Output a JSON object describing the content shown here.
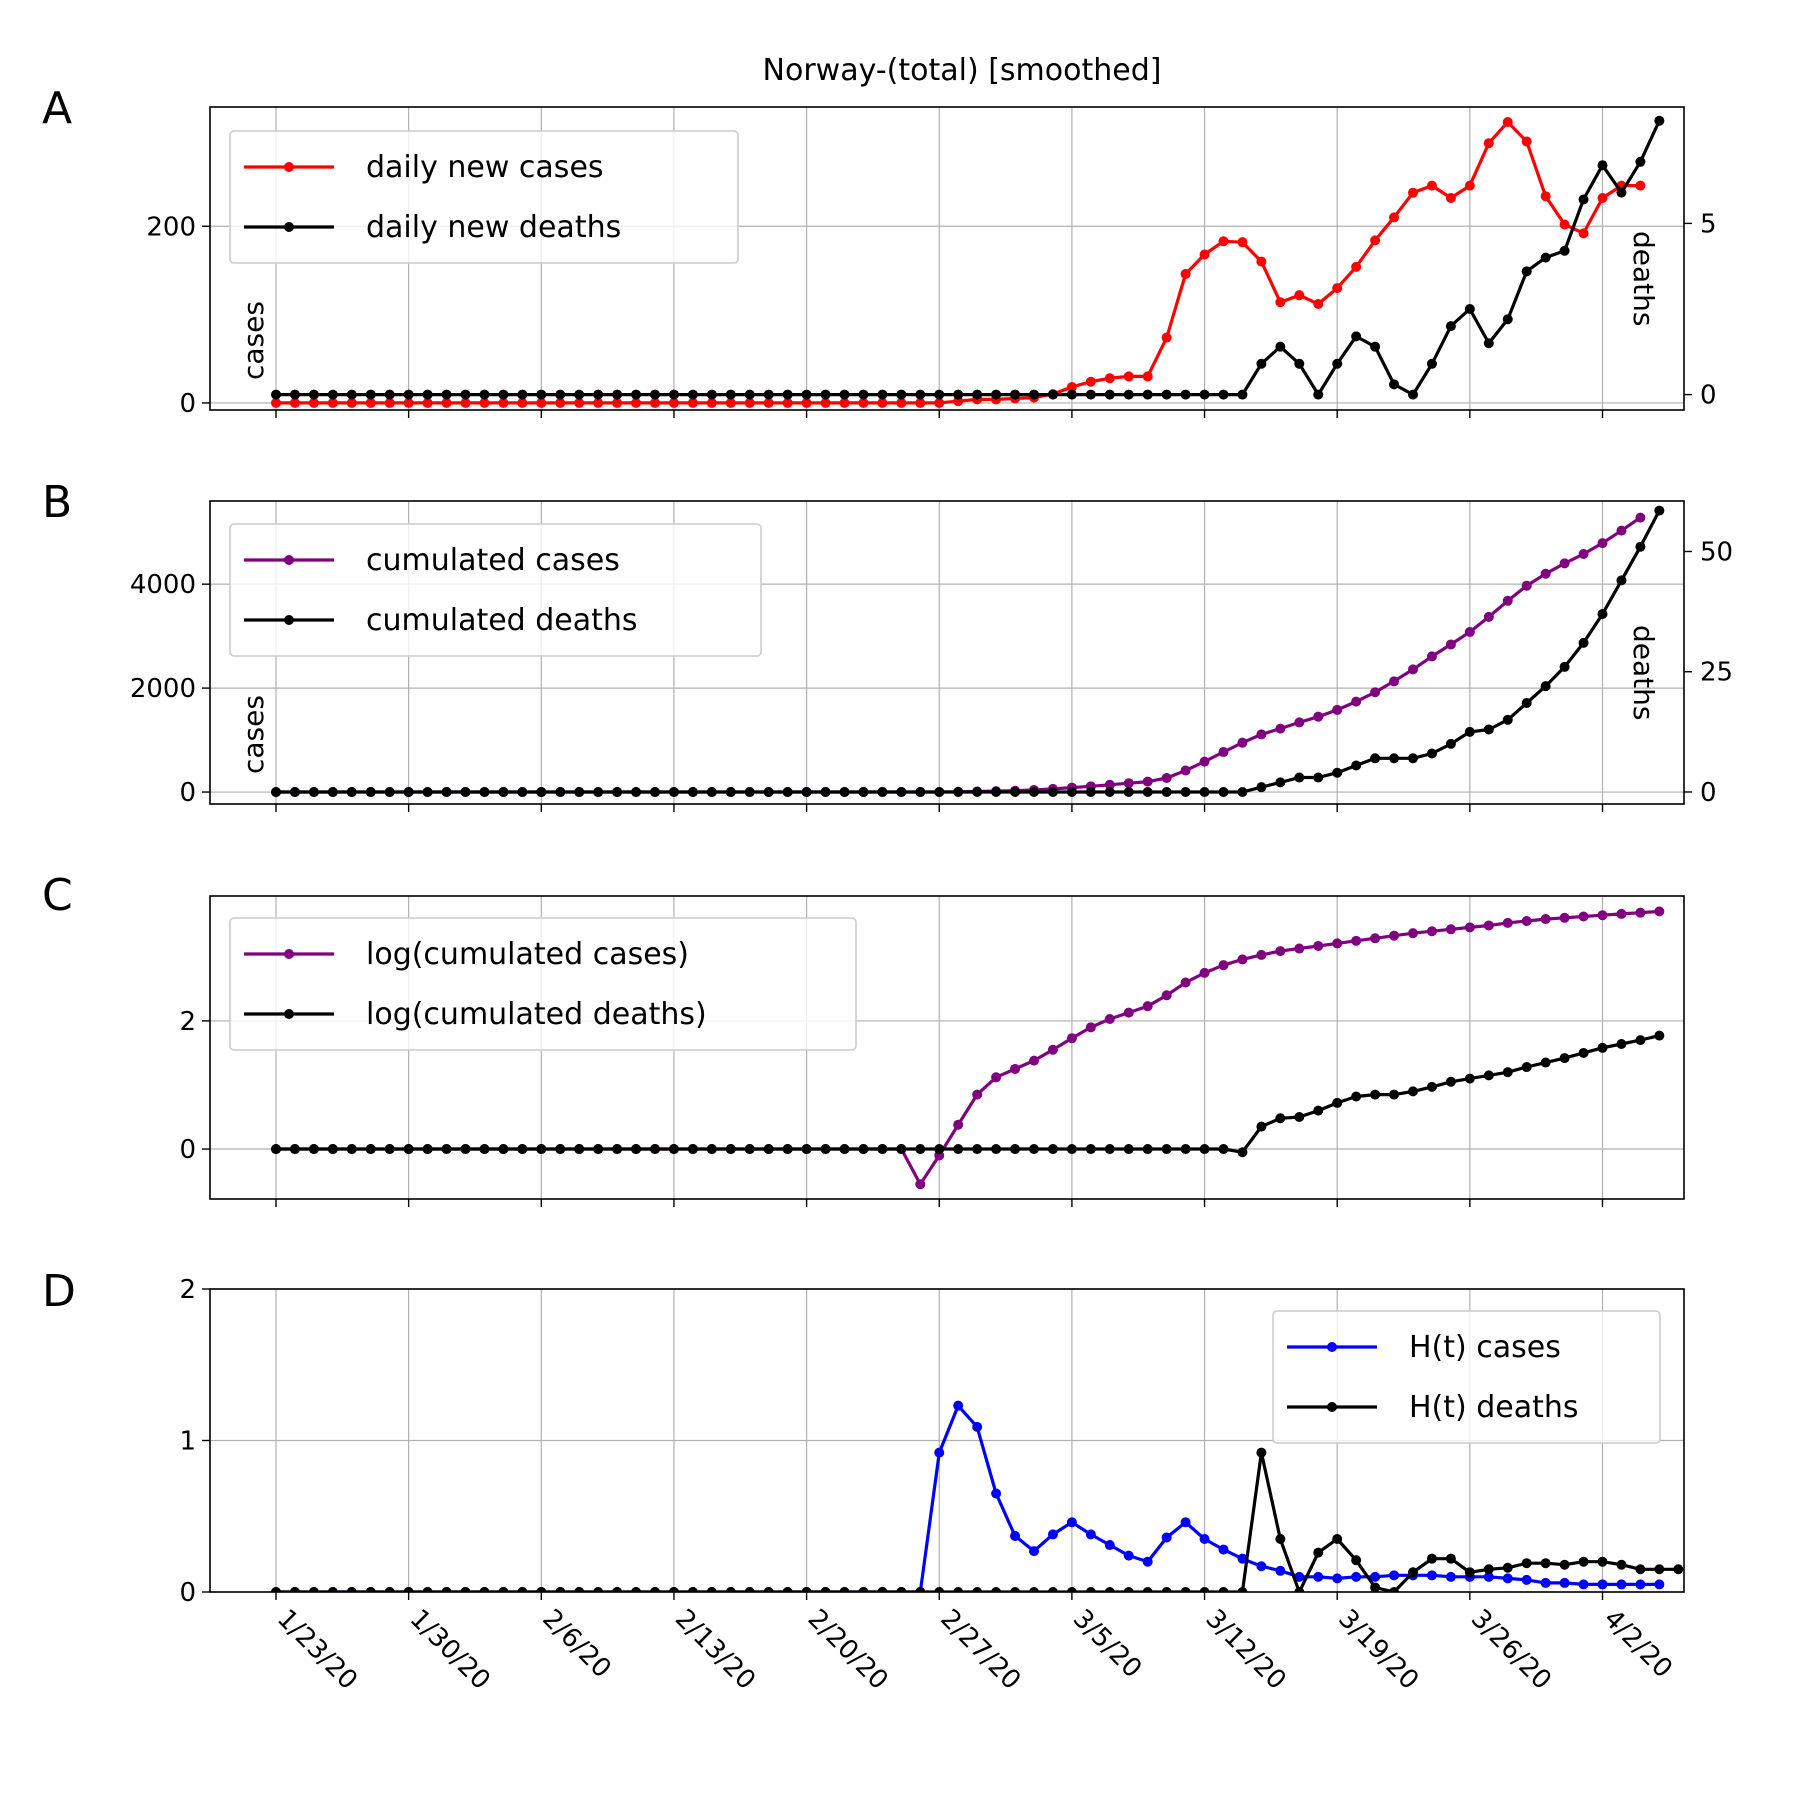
{
  "figure_title": "Norway-(total) [smoothed]",
  "x_tick_labels": [
    "1/23/20",
    "1/30/20",
    "2/6/20",
    "2/13/20",
    "2/20/20",
    "2/27/20",
    "3/5/20",
    "3/12/20",
    "3/19/20",
    "3/26/20",
    "4/2/20"
  ],
  "chart_data": [
    {
      "panel": "A",
      "type": "line",
      "x_start_date": "1/23/20",
      "x_step_days": 1,
      "ylabel_left": "cases",
      "ylabel_right": "deaths",
      "ylim_left": [
        -8,
        335
      ],
      "ylim_right": [
        -0.45,
        8.4
      ],
      "yticks_left": [
        0,
        200
      ],
      "yticks_right": [
        0,
        5
      ],
      "grid": true,
      "legend_position": "top-left",
      "series": [
        {
          "name": "daily new cases",
          "axis": "left",
          "color": "#ff0000",
          "values": [
            0,
            0,
            0,
            0,
            0,
            0,
            0,
            0,
            0,
            0,
            0,
            0,
            0,
            0,
            0,
            0,
            0,
            0,
            0,
            0,
            0,
            0,
            0,
            0,
            0,
            0,
            0,
            0,
            0,
            0,
            0,
            0,
            0,
            0,
            0,
            0,
            2,
            4,
            4,
            5,
            6,
            10,
            18,
            24,
            28,
            30,
            30,
            74,
            146,
            168,
            183,
            182,
            160,
            114,
            122,
            112,
            130,
            154,
            184,
            210,
            238,
            246,
            232,
            246,
            294,
            318,
            296,
            234,
            202,
            192,
            232,
            246,
            246
          ]
        },
        {
          "name": "daily new deaths",
          "axis": "right",
          "color": "#000000",
          "values": [
            0,
            0,
            0,
            0,
            0,
            0,
            0,
            0,
            0,
            0,
            0,
            0,
            0,
            0,
            0,
            0,
            0,
            0,
            0,
            0,
            0,
            0,
            0,
            0,
            0,
            0,
            0,
            0,
            0,
            0,
            0,
            0,
            0,
            0,
            0,
            0,
            0,
            0,
            0,
            0,
            0,
            0,
            0,
            0,
            0,
            0,
            0,
            0,
            0,
            0,
            0,
            0,
            0.9,
            1.4,
            0.9,
            0,
            0.9,
            1.7,
            1.4,
            0.3,
            0,
            0.9,
            2,
            2.5,
            1.5,
            2.2,
            3.6,
            4,
            4.2,
            5.7,
            6.7,
            5.9,
            6.8,
            8
          ]
        }
      ]
    },
    {
      "panel": "B",
      "type": "line",
      "x_start_date": "1/23/20",
      "x_step_days": 1,
      "ylabel_left": "cases",
      "ylabel_right": "deaths",
      "ylim_left": [
        -230,
        5600
      ],
      "ylim_right": [
        -2.5,
        60.5
      ],
      "yticks_left": [
        0,
        2000,
        4000
      ],
      "yticks_right": [
        0,
        25,
        50
      ],
      "grid": true,
      "legend_position": "top-left",
      "series": [
        {
          "name": "cumulated cases",
          "axis": "left",
          "color": "#800080",
          "values": [
            0,
            0,
            0,
            0,
            0,
            0,
            0,
            0,
            0,
            0,
            0,
            0,
            0,
            0,
            0,
            0,
            0,
            0,
            0,
            0,
            0,
            0,
            0,
            0,
            0,
            0,
            0,
            0,
            0,
            0,
            0,
            0,
            0,
            0,
            0,
            1,
            5,
            10,
            18,
            26,
            40,
            60,
            85,
            110,
            140,
            170,
            200,
            270,
            415,
            585,
            770,
            950,
            1110,
            1220,
            1340,
            1450,
            1580,
            1740,
            1920,
            2130,
            2360,
            2610,
            2840,
            3080,
            3370,
            3680,
            3970,
            4200,
            4400,
            4580,
            4790,
            5030,
            5280
          ]
        },
        {
          "name": "cumulated deaths",
          "axis": "right",
          "color": "#000000",
          "values": [
            0,
            0,
            0,
            0,
            0,
            0,
            0,
            0,
            0,
            0,
            0,
            0,
            0,
            0,
            0,
            0,
            0,
            0,
            0,
            0,
            0,
            0,
            0,
            0,
            0,
            0,
            0,
            0,
            0,
            0,
            0,
            0,
            0,
            0,
            0,
            0,
            0,
            0,
            0,
            0,
            0,
            0,
            0,
            0,
            0,
            0,
            0,
            0,
            0,
            0,
            0,
            0,
            1,
            2,
            3,
            3,
            4,
            5.5,
            7,
            7,
            7,
            8,
            10,
            12.5,
            13,
            15,
            18.5,
            22,
            26,
            31,
            37,
            44,
            51,
            58.5
          ]
        }
      ]
    },
    {
      "panel": "C",
      "type": "line",
      "x_start_date": "1/23/20",
      "x_step_days": 1,
      "ylim": [
        -0.78,
        3.95
      ],
      "yticks": [
        0,
        2
      ],
      "grid": true,
      "legend_position": "top-left",
      "series": [
        {
          "name": "log(cumulated cases)",
          "color": "#800080",
          "values": [
            0,
            0,
            0,
            0,
            0,
            0,
            0,
            0,
            0,
            0,
            0,
            0,
            0,
            0,
            0,
            0,
            0,
            0,
            0,
            0,
            0,
            0,
            0,
            0,
            0,
            0,
            0,
            0,
            0,
            0,
            0,
            0,
            0,
            0,
            -0.55,
            -0.1,
            0.38,
            0.85,
            1.12,
            1.25,
            1.38,
            1.55,
            1.73,
            1.9,
            2.03,
            2.13,
            2.23,
            2.4,
            2.6,
            2.75,
            2.87,
            2.96,
            3.03,
            3.09,
            3.13,
            3.17,
            3.21,
            3.25,
            3.29,
            3.33,
            3.37,
            3.4,
            3.43,
            3.46,
            3.49,
            3.53,
            3.56,
            3.59,
            3.61,
            3.63,
            3.65,
            3.67,
            3.69,
            3.71
          ]
        },
        {
          "name": "log(cumulated deaths)",
          "color": "#000000",
          "values": [
            0,
            0,
            0,
            0,
            0,
            0,
            0,
            0,
            0,
            0,
            0,
            0,
            0,
            0,
            0,
            0,
            0,
            0,
            0,
            0,
            0,
            0,
            0,
            0,
            0,
            0,
            0,
            0,
            0,
            0,
            0,
            0,
            0,
            0,
            0,
            0,
            0,
            0,
            0,
            0,
            0,
            0,
            0,
            0,
            0,
            0,
            0,
            0,
            0,
            0,
            0,
            -0.05,
            0.35,
            0.48,
            0.5,
            0.6,
            0.72,
            0.82,
            0.85,
            0.85,
            0.9,
            0.97,
            1.05,
            1.1,
            1.15,
            1.2,
            1.28,
            1.35,
            1.42,
            1.5,
            1.58,
            1.64,
            1.7,
            1.77
          ]
        }
      ]
    },
    {
      "panel": "D",
      "type": "line",
      "x_start_date": "1/23/20",
      "x_step_days": 1,
      "ylim": [
        0,
        2
      ],
      "yticks": [
        0,
        1,
        2
      ],
      "grid": true,
      "legend_position": "top-right",
      "series": [
        {
          "name": "H(t) cases",
          "color": "#0000ff",
          "values": [
            0,
            0,
            0,
            0,
            0,
            0,
            0,
            0,
            0,
            0,
            0,
            0,
            0,
            0,
            0,
            0,
            0,
            0,
            0,
            0,
            0,
            0,
            0,
            0,
            0,
            0,
            0,
            0,
            0,
            0,
            0,
            0,
            0,
            0,
            0,
            0.92,
            1.23,
            1.09,
            0.65,
            0.37,
            0.27,
            0.38,
            0.46,
            0.38,
            0.31,
            0.24,
            0.2,
            0.36,
            0.46,
            0.35,
            0.28,
            0.22,
            0.17,
            0.14,
            0.1,
            0.1,
            0.09,
            0.1,
            0.1,
            0.11,
            0.11,
            0.11,
            0.1,
            0.1,
            0.1,
            0.09,
            0.08,
            0.06,
            0.06,
            0.05,
            0.05,
            0.05,
            0.05,
            0.05
          ]
        },
        {
          "name": "H(t) deaths",
          "color": "#000000",
          "values": [
            0,
            0,
            0,
            0,
            0,
            0,
            0,
            0,
            0,
            0,
            0,
            0,
            0,
            0,
            0,
            0,
            0,
            0,
            0,
            0,
            0,
            0,
            0,
            0,
            0,
            0,
            0,
            0,
            0,
            0,
            0,
            0,
            0,
            0,
            0,
            0,
            0,
            0,
            0,
            0,
            0,
            0,
            0,
            0,
            0,
            0,
            0,
            0,
            0,
            0,
            0,
            0,
            0.92,
            0.35,
            0,
            0.26,
            0.35,
            0.21,
            0.03,
            0,
            0.13,
            0.22,
            0.22,
            0.13,
            0.15,
            0.16,
            0.19,
            0.19,
            0.18,
            0.2,
            0.2,
            0.18,
            0.15,
            0.15,
            0.15
          ]
        }
      ]
    }
  ]
}
